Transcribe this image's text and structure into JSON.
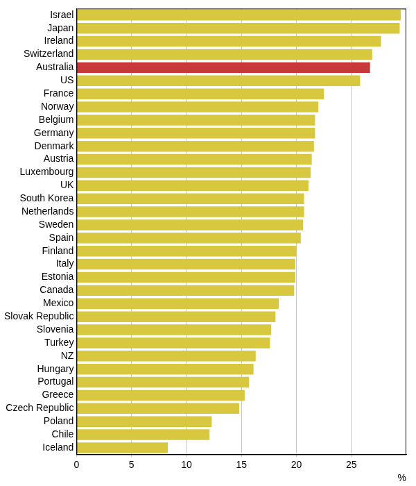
{
  "chart_data": {
    "type": "bar",
    "orientation": "horizontal",
    "categories": [
      "Israel",
      "Japan",
      "Ireland",
      "Switzerland",
      "Australia",
      "US",
      "France",
      "Norway",
      "Belgium",
      "Germany",
      "Denmark",
      "Austria",
      "Luxembourg",
      "UK",
      "South Korea",
      "Netherlands",
      "Sweden",
      "Spain",
      "Finland",
      "Italy",
      "Estonia",
      "Canada",
      "Mexico",
      "Slovak Republic",
      "Slovenia",
      "Turkey",
      "NZ",
      "Hungary",
      "Portugal",
      "Greece",
      "Czech Republic",
      "Poland",
      "Chile",
      "Iceland"
    ],
    "values": [
      29.5,
      29.4,
      27.7,
      26.9,
      26.7,
      25.8,
      22.5,
      22.0,
      21.7,
      21.7,
      21.6,
      21.4,
      21.3,
      21.1,
      20.7,
      20.7,
      20.6,
      20.4,
      20.0,
      19.9,
      19.9,
      19.8,
      18.4,
      18.1,
      17.7,
      17.6,
      16.3,
      16.1,
      15.7,
      15.3,
      14.8,
      12.3,
      12.1,
      8.3
    ],
    "colors": [
      "#d8c840",
      "#d8c840",
      "#d8c840",
      "#d8c840",
      "#c8373a",
      "#d8c840",
      "#d8c840",
      "#d8c840",
      "#d8c840",
      "#d8c840",
      "#d8c840",
      "#d8c840",
      "#d8c840",
      "#d8c840",
      "#d8c840",
      "#d8c840",
      "#d8c840",
      "#d8c840",
      "#d8c840",
      "#d8c840",
      "#d8c840",
      "#d8c840",
      "#d8c840",
      "#d8c840",
      "#d8c840",
      "#d8c840",
      "#d8c840",
      "#d8c840",
      "#d8c840",
      "#d8c840",
      "#d8c840",
      "#d8c840",
      "#d8c840",
      "#d8c840"
    ],
    "xlabel": "%",
    "xlim": [
      0,
      30
    ],
    "xticks": [
      0,
      5,
      10,
      15,
      20,
      25
    ],
    "grid": true
  }
}
